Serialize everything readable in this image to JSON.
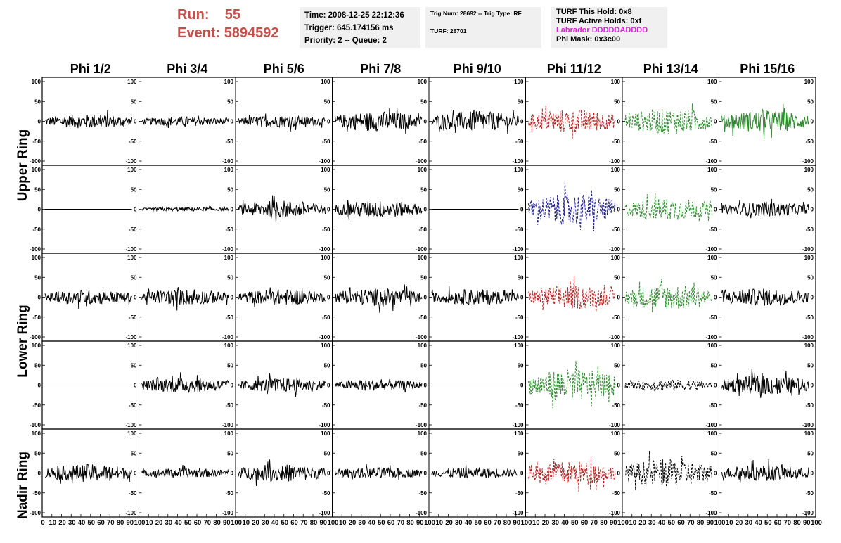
{
  "header": {
    "run_label": "Run:",
    "run_value": "55",
    "event_label": "Event:",
    "event_value": "5894592"
  },
  "info_time": {
    "time": "Time: 2008-12-25 22:12:36",
    "trigger": "Trigger: 645.174156 ms",
    "priority": "Priority: 2 -- Queue: 2"
  },
  "info_trig": {
    "trig": "Trig Num: 28692 -- Trig Type: RF",
    "turf": "TURF: 28701"
  },
  "info_turf": {
    "this_hold": "TURF This Hold: 0x8",
    "active_holds": "TURF Active Holds: 0xf",
    "labrador": "Labrador DDDDDADDDD",
    "phi_mask": "Phi Mask: 0x3c00"
  },
  "columns": [
    "Phi 1/2",
    "Phi 3/4",
    "Phi 5/6",
    "Phi 7/8",
    "Phi 9/10",
    "Phi 11/12",
    "Phi 13/14",
    "Phi 15/16"
  ],
  "ring_labels": [
    "Upper Ring",
    "Lower Ring",
    "Nadir Ring"
  ],
  "colors": {
    "black": "#000000",
    "red": "#b22222",
    "green": "#2e8b2e",
    "blue": "#1a1a8c",
    "magenta": "#e020e0",
    "runText": "#c9504a"
  },
  "y_ticks": [
    100,
    50,
    0,
    -50,
    -100
  ],
  "x_ticks": [
    "0",
    "10",
    "20",
    "30",
    "40",
    "50",
    "60",
    "70",
    "80",
    "90",
    "100"
  ],
  "chart_data": {
    "type": "line",
    "title": "",
    "xlabel": "",
    "ylabel": "",
    "xlim": [
      0,
      100
    ],
    "ylim": [
      -100,
      100
    ],
    "grid": false,
    "rows": [
      {
        "cells": [
          {
            "color": "black",
            "dashed": false,
            "amp": 18
          },
          {
            "color": "black",
            "dashed": false,
            "amp": 12
          },
          {
            "color": "black",
            "dashed": false,
            "amp": 15
          },
          {
            "color": "black",
            "dashed": false,
            "amp": 25
          },
          {
            "color": "black",
            "dashed": false,
            "amp": 25
          },
          {
            "color": "red",
            "dashed": true,
            "amp": 30
          },
          {
            "color": "green",
            "dashed": true,
            "amp": 32
          },
          {
            "color": "green",
            "dashed": false,
            "amp": 28
          }
        ]
      },
      {
        "cells": [
          {
            "color": "black",
            "dashed": false,
            "amp": 0
          },
          {
            "color": "black",
            "dashed": false,
            "amp": 5
          },
          {
            "color": "black",
            "dashed": false,
            "amp": 22
          },
          {
            "color": "black",
            "dashed": false,
            "amp": 22
          },
          {
            "color": "black",
            "dashed": false,
            "amp": 0
          },
          {
            "color": "blue",
            "dashed": true,
            "amp": 40
          },
          {
            "color": "green",
            "dashed": true,
            "amp": 28
          },
          {
            "color": "black",
            "dashed": false,
            "amp": 18
          }
        ]
      },
      {
        "cells": [
          {
            "color": "black",
            "dashed": false,
            "amp": 18
          },
          {
            "color": "black",
            "dashed": false,
            "amp": 20
          },
          {
            "color": "black",
            "dashed": false,
            "amp": 20
          },
          {
            "color": "black",
            "dashed": false,
            "amp": 22
          },
          {
            "color": "black",
            "dashed": false,
            "amp": 20
          },
          {
            "color": "red",
            "dashed": true,
            "amp": 30
          },
          {
            "color": "green",
            "dashed": true,
            "amp": 32
          },
          {
            "color": "black",
            "dashed": false,
            "amp": 22
          }
        ]
      },
      {
        "cells": [
          {
            "color": "black",
            "dashed": false,
            "amp": 0
          },
          {
            "color": "black",
            "dashed": false,
            "amp": 20
          },
          {
            "color": "black",
            "dashed": false,
            "amp": 18
          },
          {
            "color": "black",
            "dashed": false,
            "amp": 14
          },
          {
            "color": "black",
            "dashed": false,
            "amp": 0
          },
          {
            "color": "green",
            "dashed": true,
            "amp": 40
          },
          {
            "color": "black",
            "dashed": true,
            "amp": 14
          },
          {
            "color": "black",
            "dashed": false,
            "amp": 24
          }
        ]
      },
      {
        "cells": [
          {
            "color": "black",
            "dashed": false,
            "amp": 22
          },
          {
            "color": "black",
            "dashed": false,
            "amp": 12
          },
          {
            "color": "black",
            "dashed": false,
            "amp": 22
          },
          {
            "color": "black",
            "dashed": false,
            "amp": 14
          },
          {
            "color": "black",
            "dashed": false,
            "amp": 14
          },
          {
            "color": "red",
            "dashed": true,
            "amp": 30
          },
          {
            "color": "black",
            "dashed": true,
            "amp": 35
          },
          {
            "color": "black",
            "dashed": false,
            "amp": 20
          }
        ]
      }
    ]
  }
}
